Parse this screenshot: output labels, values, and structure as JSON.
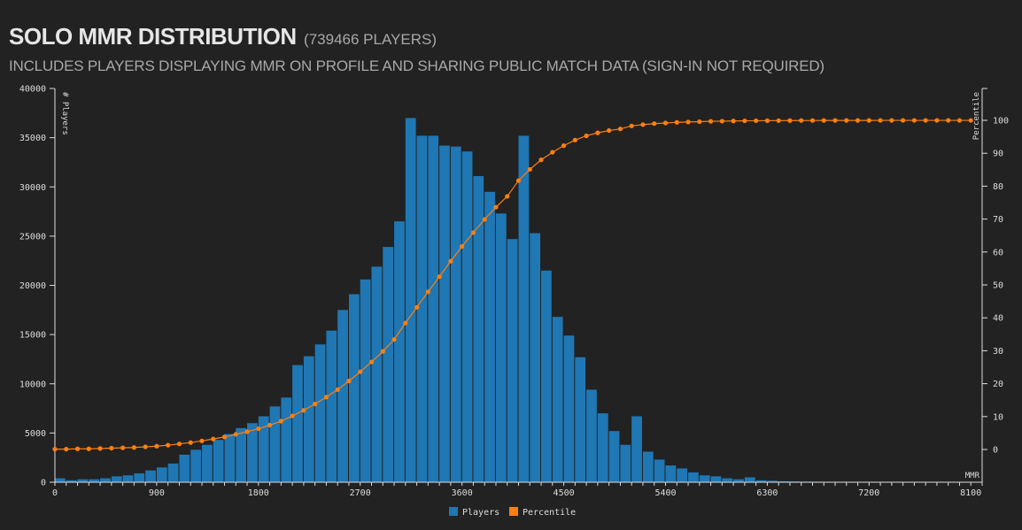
{
  "header": {
    "title": "SOLO MMR DISTRIBUTION",
    "count": "(739466 PLAYERS)",
    "subtitle": "INCLUDES PLAYERS DISPLAYING MMR ON PROFILE AND SHARING PUBLIC MATCH DATA (SIGN-IN NOT REQUIRED)"
  },
  "colors": {
    "background": "#222222",
    "bars": "#1f77b4",
    "percentile": "#ff7f0e",
    "axis": "#dddddd"
  },
  "chart_data": {
    "type": "bar",
    "title": "SOLO MMR DISTRIBUTION",
    "xlabel": "MMR",
    "ylabel": "# Players",
    "y2label": "Percentile",
    "bin_width": 100,
    "x": [
      0,
      100,
      200,
      300,
      400,
      500,
      600,
      700,
      800,
      900,
      1000,
      1100,
      1200,
      1300,
      1400,
      1500,
      1600,
      1700,
      1800,
      1900,
      2000,
      2100,
      2200,
      2300,
      2400,
      2500,
      2600,
      2700,
      2800,
      2900,
      3000,
      3100,
      3200,
      3300,
      3400,
      3500,
      3600,
      3700,
      3800,
      3900,
      4000,
      4100,
      4200,
      4300,
      4400,
      4500,
      4600,
      4700,
      4800,
      4900,
      5000,
      5100,
      5200,
      5300,
      5400,
      5500,
      5600,
      5700,
      5800,
      5900,
      6000,
      6100,
      6200,
      6300,
      6400,
      6500,
      6600,
      6700,
      6800,
      6900,
      7000,
      7100,
      7200,
      7300,
      7400,
      7500,
      7600,
      7700,
      7800,
      7900,
      8000,
      8100
    ],
    "series": [
      {
        "name": "Players",
        "axis": "left",
        "values": [
          400,
          200,
          300,
          300,
          400,
          600,
          700,
          900,
          1200,
          1500,
          1900,
          2800,
          3300,
          3800,
          4300,
          4900,
          5500,
          6000,
          6700,
          7700,
          8600,
          11900,
          12800,
          14000,
          15400,
          17500,
          19100,
          20600,
          21900,
          23900,
          26500,
          37000,
          35200,
          35200,
          34200,
          34100,
          33600,
          31100,
          29500,
          27300,
          24700,
          35200,
          25300,
          21500,
          16800,
          14900,
          12700,
          9400,
          7000,
          5200,
          3800,
          6700,
          3100,
          2300,
          1700,
          1400,
          1000,
          700,
          600,
          400,
          300,
          500,
          200,
          150,
          100,
          80,
          60,
          50,
          40,
          30,
          40,
          20,
          15,
          10,
          10,
          8,
          6,
          5,
          4,
          3,
          3,
          2
        ],
        "color": "#1f77b4"
      },
      {
        "name": "Percentile",
        "axis": "right",
        "values": [
          0.1,
          0.1,
          0.2,
          0.2,
          0.3,
          0.4,
          0.5,
          0.6,
          0.8,
          1.0,
          1.3,
          1.7,
          2.1,
          2.6,
          3.2,
          3.8,
          4.6,
          5.4,
          6.3,
          7.4,
          8.6,
          10.2,
          11.9,
          13.8,
          15.9,
          18.2,
          20.8,
          23.6,
          26.6,
          29.8,
          33.4,
          38.4,
          43.2,
          47.9,
          52.5,
          57.2,
          61.7,
          65.9,
          69.9,
          73.6,
          76.9,
          81.7,
          85.1,
          88.0,
          90.3,
          92.3,
          94.0,
          95.3,
          96.2,
          96.9,
          97.4,
          98.3,
          98.7,
          99.0,
          99.2,
          99.4,
          99.5,
          99.6,
          99.7,
          99.75,
          99.8,
          99.85,
          99.88,
          99.9,
          99.92,
          99.93,
          99.94,
          99.95,
          99.96,
          99.96,
          99.97,
          99.97,
          99.97,
          99.98,
          99.98,
          99.98,
          99.98,
          99.99,
          99.99,
          99.99,
          99.99,
          99.99
        ],
        "color": "#ff7f0e"
      }
    ],
    "xlim": [
      0,
      8200
    ],
    "ylim": [
      0,
      40000
    ],
    "y2lim": [
      0,
      100
    ],
    "x_ticks": [
      "0",
      "900",
      "1800",
      "2700",
      "3600",
      "4500",
      "5400",
      "6300",
      "7200",
      "8100"
    ],
    "y_ticks": [
      "0",
      "5000",
      "10000",
      "15000",
      "20000",
      "25000",
      "30000",
      "35000",
      "40000"
    ],
    "y2_ticks": [
      "0",
      "10",
      "20",
      "30",
      "40",
      "50",
      "60",
      "70",
      "80",
      "90",
      "100"
    ],
    "legend": [
      "Players",
      "Percentile"
    ],
    "legend_position": "bottom-center",
    "grid": false
  }
}
